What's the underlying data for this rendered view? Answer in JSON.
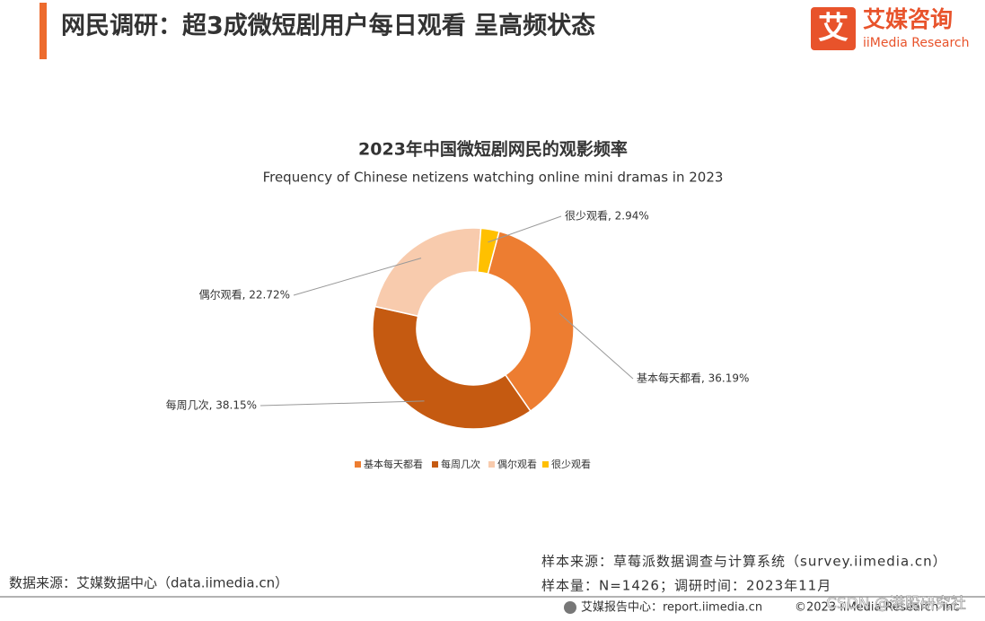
{
  "header": {
    "title": "网民调研：超3成微短剧用户每日观看 呈高频状态",
    "logo_mark": "艾",
    "logo_name": "艾媒咨询",
    "logo_sub": "iiMedia Research"
  },
  "chart_data": {
    "type": "donut",
    "title": "2023年中国微短剧网民的观影频率",
    "subtitle": "Frequency of Chinese netizens watching online mini dramas in 2023",
    "categories": [
      "基本每天都看",
      "每周几次",
      "偶尔观看",
      "很少观看"
    ],
    "values": [
      36.19,
      38.15,
      22.72,
      2.94
    ],
    "value_labels": [
      "基本每天都看, 36.19%",
      "每周几次, 38.15%",
      "偶尔观看, 22.72%",
      "很少观看, 2.94%"
    ],
    "colors": [
      "#ed7d31",
      "#c55a11",
      "#f8cbad",
      "#ffc000"
    ],
    "legend": "bottom"
  },
  "footer": {
    "sample_source": "样本来源：草莓派数据调查与计算系统（survey.iimedia.cn）",
    "sample_size": "样本量：N=1426；调研时间：2023年11月",
    "data_source": "数据来源：艾媒数据中心（data.iimedia.cn）",
    "report_center": "艾媒报告中心：report.iimedia.cn",
    "copyright": "©2023  iiMedia Research  Inc",
    "watermark": "CSDN @港股研究社"
  }
}
